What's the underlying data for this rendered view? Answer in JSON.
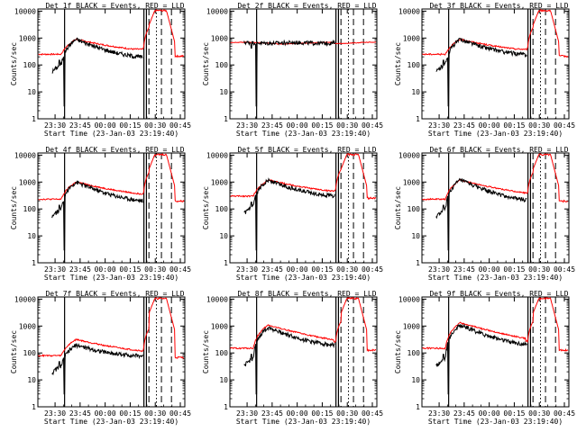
{
  "chart_data": {
    "type": "line",
    "x_tick_labels": [
      "23:30",
      "23:45",
      "00:00",
      "00:15",
      "00:30",
      "00:45"
    ],
    "y_tick_labels": [
      "1",
      "10",
      "100",
      "1000",
      "10000"
    ],
    "ylabel": "Counts/sec",
    "xlabel": "Start Time (23-Jan-03 23:19:40)",
    "ylim": [
      1,
      12000
    ],
    "xlim_minutes_from_start": [
      0,
      88
    ],
    "x_tick_minutes": [
      10.3,
      25.3,
      40.3,
      55.3,
      70.3,
      85.3
    ],
    "vertical_markers_minutes": [
      {
        "t": 16,
        "style": "solid"
      },
      {
        "t": 63.5,
        "style": "solid"
      },
      {
        "t": 65,
        "style": "solid"
      },
      {
        "t": 66.5,
        "style": "dashed"
      },
      {
        "t": 71,
        "style": "dotted"
      },
      {
        "t": 74,
        "style": "dashed"
      },
      {
        "t": 80,
        "style": "dashed"
      }
    ],
    "series_legend": [
      {
        "name": "Events",
        "color": "#000000"
      },
      {
        "name": "LLD",
        "color": "#ff0000"
      }
    ],
    "panels": [
      {
        "title": "Det 1f BLACK = Events, RED = LLD",
        "base": 250,
        "peak": 900,
        "tail": 150,
        "lld_gain": 1.0,
        "flat": false
      },
      {
        "title": "Det 2f BLACK = Events, RED = LLD",
        "base": 700,
        "peak": 750,
        "tail": 700,
        "lld_gain": 1.0,
        "flat": true
      },
      {
        "title": "Det 3f BLACK = Events, RED = LLD",
        "base": 250,
        "peak": 900,
        "tail": 200,
        "lld_gain": 1.0,
        "flat": false
      },
      {
        "title": "Det 4f BLACK = Events, RED = LLD",
        "base": 230,
        "peak": 1000,
        "tail": 150,
        "lld_gain": 1.0,
        "flat": false
      },
      {
        "title": "Det 5f BLACK = Events, RED = LLD",
        "base": 300,
        "peak": 1200,
        "tail": 250,
        "lld_gain": 1.0,
        "flat": false
      },
      {
        "title": "Det 6f BLACK = Events, RED = LLD",
        "base": 230,
        "peak": 1200,
        "tail": 150,
        "lld_gain": 1.0,
        "flat": false
      },
      {
        "title": "Det 7f BLACK = Events, RED = LLD",
        "base": 80,
        "peak": 200,
        "tail": 70,
        "lld_gain": 1.6,
        "flat": false
      },
      {
        "title": "Det 8f BLACK = Events, RED = LLD",
        "base": 150,
        "peak": 900,
        "tail": 150,
        "lld_gain": 1.2,
        "flat": false
      },
      {
        "title": "Det 9f BLACK = Events, RED = LLD",
        "base": 150,
        "peak": 1100,
        "tail": 150,
        "lld_gain": 1.2,
        "flat": false
      }
    ]
  }
}
